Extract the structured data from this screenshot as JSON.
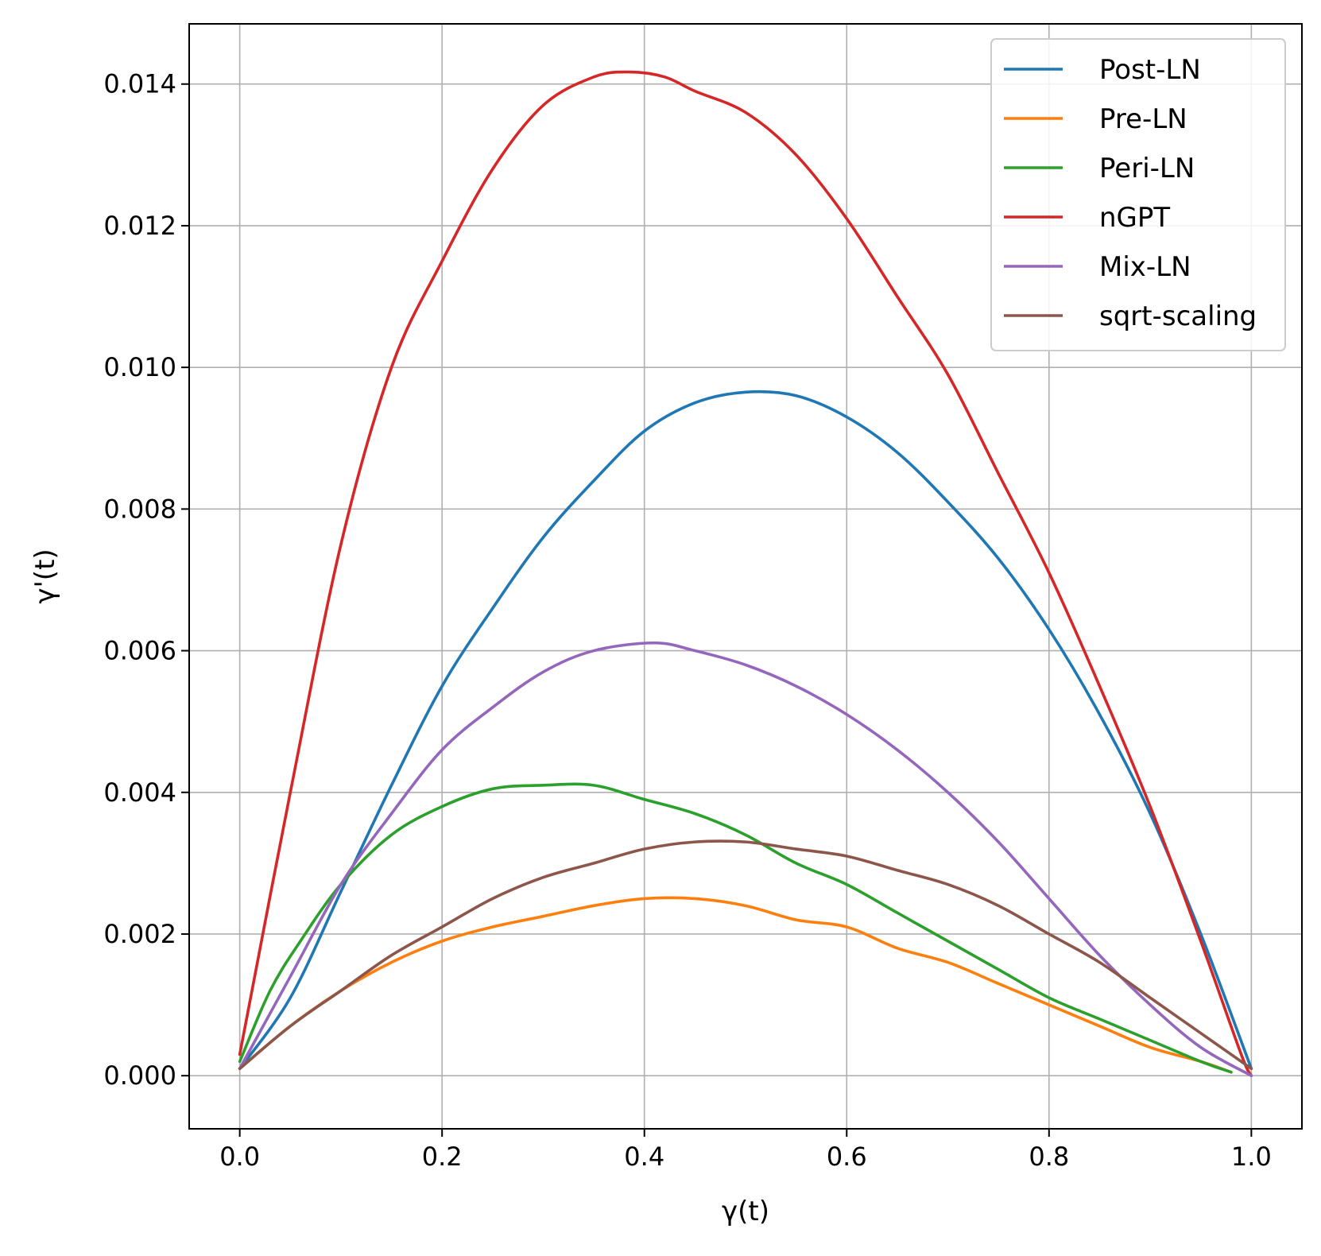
{
  "chart_data": {
    "type": "line",
    "title": "",
    "xlabel": "γ(t)",
    "ylabel": "γ'(t)",
    "xlim": [
      -0.05,
      1.05
    ],
    "ylim": [
      -0.00075,
      0.01485
    ],
    "xticks": [
      0.0,
      0.2,
      0.4,
      0.6,
      0.8,
      1.0
    ],
    "xtick_labels": [
      "0.0",
      "0.2",
      "0.4",
      "0.6",
      "0.8",
      "1.0"
    ],
    "yticks": [
      0.0,
      0.002,
      0.004,
      0.006,
      0.008,
      0.01,
      0.012,
      0.014
    ],
    "ytick_labels": [
      "0.000",
      "0.002",
      "0.004",
      "0.006",
      "0.008",
      "0.010",
      "0.012",
      "0.014"
    ],
    "grid": true,
    "legend_position": "top-right",
    "series": [
      {
        "name": "Post-LN",
        "color": "#1f77b4",
        "points": [
          [
            0.0,
            0.0001
          ],
          [
            0.05,
            0.0011
          ],
          [
            0.1,
            0.0026
          ],
          [
            0.15,
            0.0041
          ],
          [
            0.2,
            0.0055
          ],
          [
            0.25,
            0.0066
          ],
          [
            0.3,
            0.0076
          ],
          [
            0.35,
            0.0084
          ],
          [
            0.4,
            0.0091
          ],
          [
            0.45,
            0.0095
          ],
          [
            0.5,
            0.00965
          ],
          [
            0.55,
            0.0096
          ],
          [
            0.6,
            0.0093
          ],
          [
            0.65,
            0.0088
          ],
          [
            0.7,
            0.0081
          ],
          [
            0.75,
            0.0073
          ],
          [
            0.8,
            0.0063
          ],
          [
            0.85,
            0.0051
          ],
          [
            0.9,
            0.0037
          ],
          [
            0.95,
            0.002
          ],
          [
            1.0,
            0.0001
          ]
        ]
      },
      {
        "name": "Pre-LN",
        "color": "#ff7f0e",
        "points": [
          [
            0.0,
            0.0001
          ],
          [
            0.05,
            0.0007
          ],
          [
            0.1,
            0.0012
          ],
          [
            0.15,
            0.0016
          ],
          [
            0.2,
            0.0019
          ],
          [
            0.25,
            0.0021
          ],
          [
            0.3,
            0.00225
          ],
          [
            0.35,
            0.0024
          ],
          [
            0.4,
            0.0025
          ],
          [
            0.45,
            0.0025
          ],
          [
            0.5,
            0.0024
          ],
          [
            0.55,
            0.0022
          ],
          [
            0.6,
            0.0021
          ],
          [
            0.65,
            0.0018
          ],
          [
            0.7,
            0.0016
          ],
          [
            0.75,
            0.0013
          ],
          [
            0.8,
            0.001
          ],
          [
            0.85,
            0.0007
          ],
          [
            0.9,
            0.0004
          ],
          [
            0.95,
            0.0002
          ],
          [
            0.98,
            5e-05
          ]
        ]
      },
      {
        "name": "Peri-LN",
        "color": "#2ca02c",
        "points": [
          [
            0.0,
            0.0002
          ],
          [
            0.03,
            0.0012
          ],
          [
            0.06,
            0.0019
          ],
          [
            0.1,
            0.0027
          ],
          [
            0.15,
            0.0034
          ],
          [
            0.2,
            0.0038
          ],
          [
            0.25,
            0.00405
          ],
          [
            0.3,
            0.0041
          ],
          [
            0.35,
            0.0041
          ],
          [
            0.4,
            0.0039
          ],
          [
            0.45,
            0.0037
          ],
          [
            0.5,
            0.0034
          ],
          [
            0.55,
            0.003
          ],
          [
            0.6,
            0.0027
          ],
          [
            0.65,
            0.0023
          ],
          [
            0.7,
            0.0019
          ],
          [
            0.75,
            0.0015
          ],
          [
            0.8,
            0.0011
          ],
          [
            0.85,
            0.0008
          ],
          [
            0.9,
            0.0005
          ],
          [
            0.95,
            0.0002
          ],
          [
            0.98,
            5e-05
          ]
        ]
      },
      {
        "name": "nGPT",
        "color": "#d62728",
        "points": [
          [
            0.0,
            0.0003
          ],
          [
            0.05,
            0.004
          ],
          [
            0.1,
            0.0075
          ],
          [
            0.15,
            0.01
          ],
          [
            0.2,
            0.0115
          ],
          [
            0.25,
            0.0128
          ],
          [
            0.3,
            0.0137
          ],
          [
            0.35,
            0.0141
          ],
          [
            0.385,
            0.01417
          ],
          [
            0.42,
            0.0141
          ],
          [
            0.45,
            0.0139
          ],
          [
            0.5,
            0.0136
          ],
          [
            0.55,
            0.013
          ],
          [
            0.6,
            0.0121
          ],
          [
            0.65,
            0.011
          ],
          [
            0.7,
            0.0099
          ],
          [
            0.75,
            0.0085
          ],
          [
            0.8,
            0.0071
          ],
          [
            0.85,
            0.0055
          ],
          [
            0.9,
            0.0038
          ],
          [
            0.95,
            0.0019
          ],
          [
            0.99,
            0.0003
          ],
          [
            1.0,
            0.0
          ]
        ]
      },
      {
        "name": "Mix-LN",
        "color": "#9467bd",
        "points": [
          [
            0.0,
            0.0001
          ],
          [
            0.05,
            0.0014
          ],
          [
            0.1,
            0.0027
          ],
          [
            0.15,
            0.0037
          ],
          [
            0.2,
            0.0046
          ],
          [
            0.25,
            0.0052
          ],
          [
            0.3,
            0.0057
          ],
          [
            0.35,
            0.006
          ],
          [
            0.41,
            0.00611
          ],
          [
            0.45,
            0.006
          ],
          [
            0.5,
            0.0058
          ],
          [
            0.55,
            0.0055
          ],
          [
            0.6,
            0.0051
          ],
          [
            0.65,
            0.0046
          ],
          [
            0.7,
            0.004
          ],
          [
            0.75,
            0.0033
          ],
          [
            0.8,
            0.0025
          ],
          [
            0.85,
            0.0017
          ],
          [
            0.9,
            0.001
          ],
          [
            0.95,
            0.0004
          ],
          [
            1.0,
            0.0
          ]
        ]
      },
      {
        "name": "sqrt-scaling",
        "color": "#8c564b",
        "points": [
          [
            0.0,
            0.0001
          ],
          [
            0.05,
            0.0007
          ],
          [
            0.1,
            0.0012
          ],
          [
            0.15,
            0.0017
          ],
          [
            0.2,
            0.0021
          ],
          [
            0.25,
            0.0025
          ],
          [
            0.3,
            0.0028
          ],
          [
            0.35,
            0.003
          ],
          [
            0.4,
            0.0032
          ],
          [
            0.45,
            0.0033
          ],
          [
            0.5,
            0.0033
          ],
          [
            0.55,
            0.0032
          ],
          [
            0.6,
            0.0031
          ],
          [
            0.65,
            0.0029
          ],
          [
            0.7,
            0.0027
          ],
          [
            0.75,
            0.0024
          ],
          [
            0.8,
            0.002
          ],
          [
            0.85,
            0.0016
          ],
          [
            0.9,
            0.0011
          ],
          [
            0.95,
            0.0006
          ],
          [
            1.0,
            0.0001
          ]
        ]
      }
    ]
  }
}
